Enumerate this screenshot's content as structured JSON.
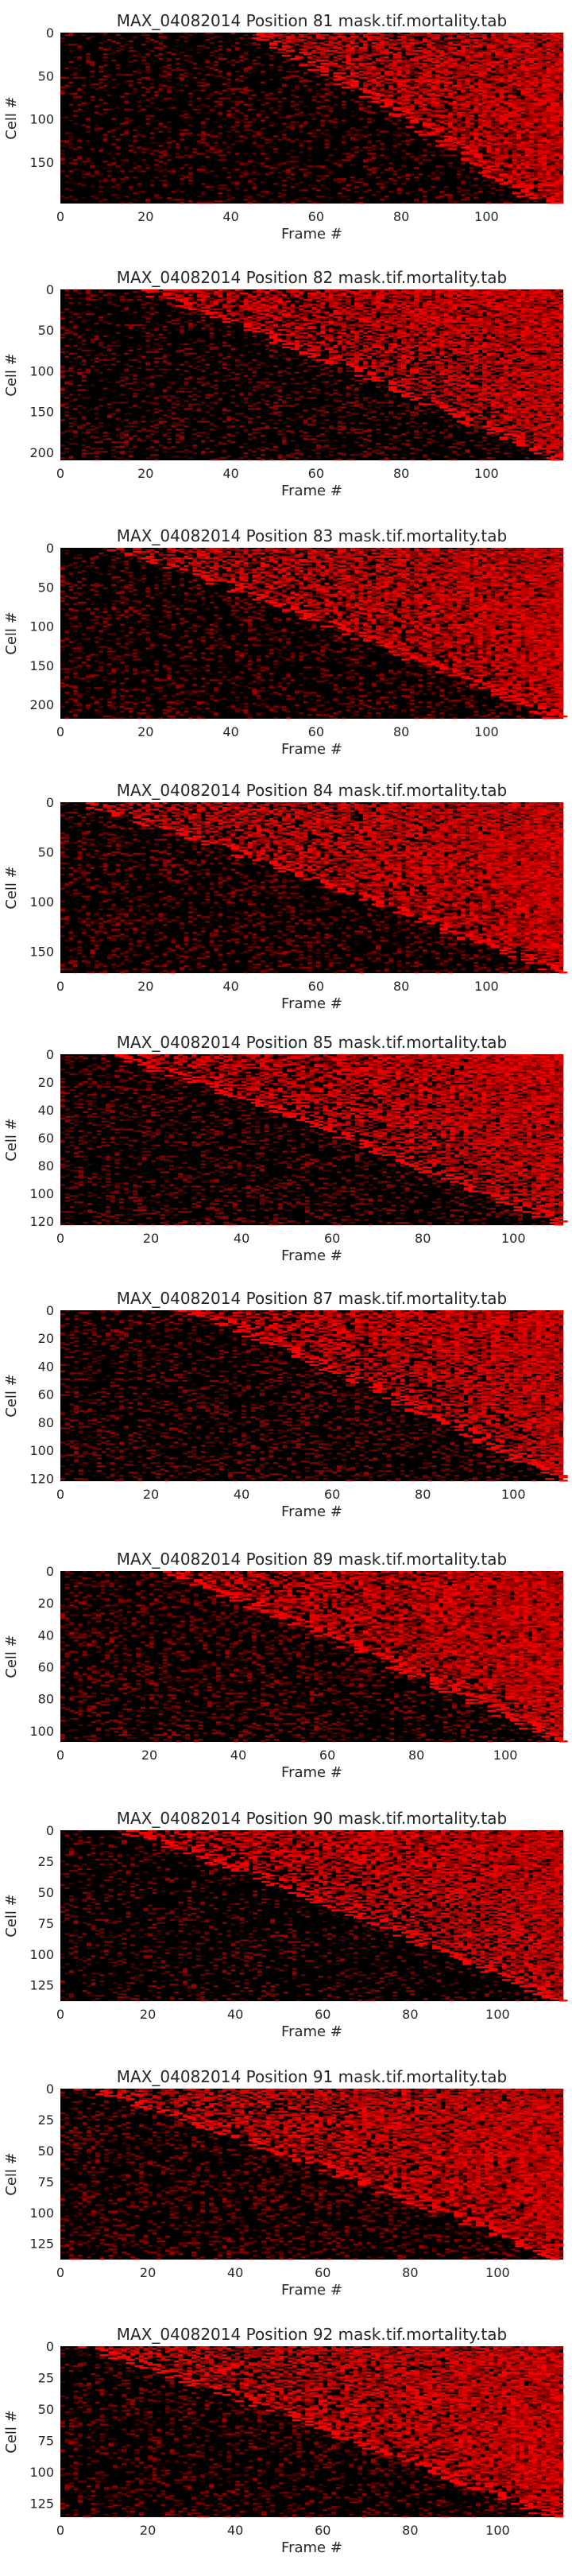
{
  "figure": {
    "background": "#ffffff",
    "colormap": [
      "#000000",
      "#ff0000"
    ]
  },
  "chart_data": [
    {
      "type": "heatmap",
      "title": "MAX_04082014 Position 81 mask.tif.mortality.tab",
      "xlabel": "Frame #",
      "ylabel": "Cell #",
      "xlim": [
        0,
        118
      ],
      "ylim": [
        0,
        198
      ],
      "xticks": [
        0,
        20,
        40,
        60,
        80,
        100
      ],
      "yticks": [
        0,
        50,
        100,
        150
      ],
      "onset_range": [
        44,
        112
      ],
      "noise": 0.18
    },
    {
      "type": "heatmap",
      "title": "MAX_04082014 Position 82 mask.tif.mortality.tab",
      "xlabel": "Frame #",
      "ylabel": "Cell #",
      "xlim": [
        0,
        118
      ],
      "ylim": [
        0,
        210
      ],
      "xticks": [
        0,
        20,
        40,
        60,
        80,
        100
      ],
      "yticks": [
        0,
        50,
        100,
        150,
        200
      ],
      "onset_range": [
        18,
        116
      ],
      "noise": 0.22
    },
    {
      "type": "heatmap",
      "title": "MAX_04082014 Position 83 mask.tif.mortality.tab",
      "xlabel": "Frame #",
      "ylabel": "Cell #",
      "xlim": [
        0,
        118
      ],
      "ylim": [
        0,
        218
      ],
      "xticks": [
        0,
        20,
        40,
        60,
        80,
        100
      ],
      "yticks": [
        0,
        50,
        100,
        150,
        200
      ],
      "onset_range": [
        12,
        116
      ],
      "noise": 0.2
    },
    {
      "type": "heatmap",
      "title": "MAX_04082014 Position 84 mask.tif.mortality.tab",
      "xlabel": "Frame #",
      "ylabel": "Cell #",
      "xlim": [
        0,
        118
      ],
      "ylim": [
        0,
        172
      ],
      "xticks": [
        0,
        20,
        40,
        60,
        80,
        100
      ],
      "yticks": [
        0,
        50,
        100,
        150
      ],
      "onset_range": [
        4,
        116
      ],
      "noise": 0.22
    },
    {
      "type": "heatmap",
      "title": "MAX_04082014 Position 85 mask.tif.mortality.tab",
      "xlabel": "Frame #",
      "ylabel": "Cell #",
      "xlim": [
        0,
        111
      ],
      "ylim": [
        0,
        123
      ],
      "xticks": [
        0,
        20,
        40,
        60,
        80,
        100
      ],
      "yticks": [
        0,
        20,
        40,
        60,
        80,
        100,
        120
      ],
      "onset_range": [
        10,
        110
      ],
      "noise": 0.25
    },
    {
      "type": "heatmap",
      "title": "MAX_04082014 Position 87 mask.tif.mortality.tab",
      "xlabel": "Frame #",
      "ylabel": "Cell #",
      "xlim": [
        0,
        111
      ],
      "ylim": [
        0,
        122
      ],
      "xticks": [
        0,
        20,
        40,
        60,
        80,
        100
      ],
      "yticks": [
        0,
        20,
        40,
        60,
        80,
        100,
        120
      ],
      "onset_range": [
        28,
        110
      ],
      "noise": 0.24
    },
    {
      "type": "heatmap",
      "title": "MAX_04082014 Position 89 mask.tif.mortality.tab",
      "xlabel": "Frame #",
      "ylabel": "Cell #",
      "xlim": [
        0,
        113
      ],
      "ylim": [
        0,
        107
      ],
      "xticks": [
        0,
        20,
        40,
        60,
        80,
        100
      ],
      "yticks": [
        0,
        20,
        40,
        60,
        80,
        100
      ],
      "onset_range": [
        22,
        112
      ],
      "noise": 0.24
    },
    {
      "type": "heatmap",
      "title": "MAX_04082014 Position 90 mask.tif.mortality.tab",
      "xlabel": "Frame #",
      "ylabel": "Cell #",
      "xlim": [
        0,
        115
      ],
      "ylim": [
        0,
        138
      ],
      "xticks": [
        0,
        20,
        40,
        60,
        80,
        100
      ],
      "yticks": [
        0,
        25,
        50,
        75,
        100,
        125
      ],
      "onset_range": [
        14,
        114
      ],
      "noise": 0.16
    },
    {
      "type": "heatmap",
      "title": "MAX_04082014 Position 91 mask.tif.mortality.tab",
      "xlabel": "Frame #",
      "ylabel": "Cell #",
      "xlim": [
        0,
        115
      ],
      "ylim": [
        0,
        138
      ],
      "xticks": [
        0,
        20,
        40,
        60,
        80,
        100
      ],
      "yticks": [
        0,
        25,
        50,
        75,
        100,
        125
      ],
      "onset_range": [
        6,
        114
      ],
      "noise": 0.22
    },
    {
      "type": "heatmap",
      "title": "MAX_04082014 Position 92 mask.tif.mortality.tab",
      "xlabel": "Frame #",
      "ylabel": "Cell #",
      "xlim": [
        0,
        115
      ],
      "ylim": [
        0,
        136
      ],
      "xticks": [
        0,
        20,
        40,
        60,
        80,
        100
      ],
      "yticks": [
        0,
        25,
        50,
        75,
        100,
        125
      ],
      "onset_range": [
        4,
        112
      ],
      "noise": 0.2
    }
  ]
}
